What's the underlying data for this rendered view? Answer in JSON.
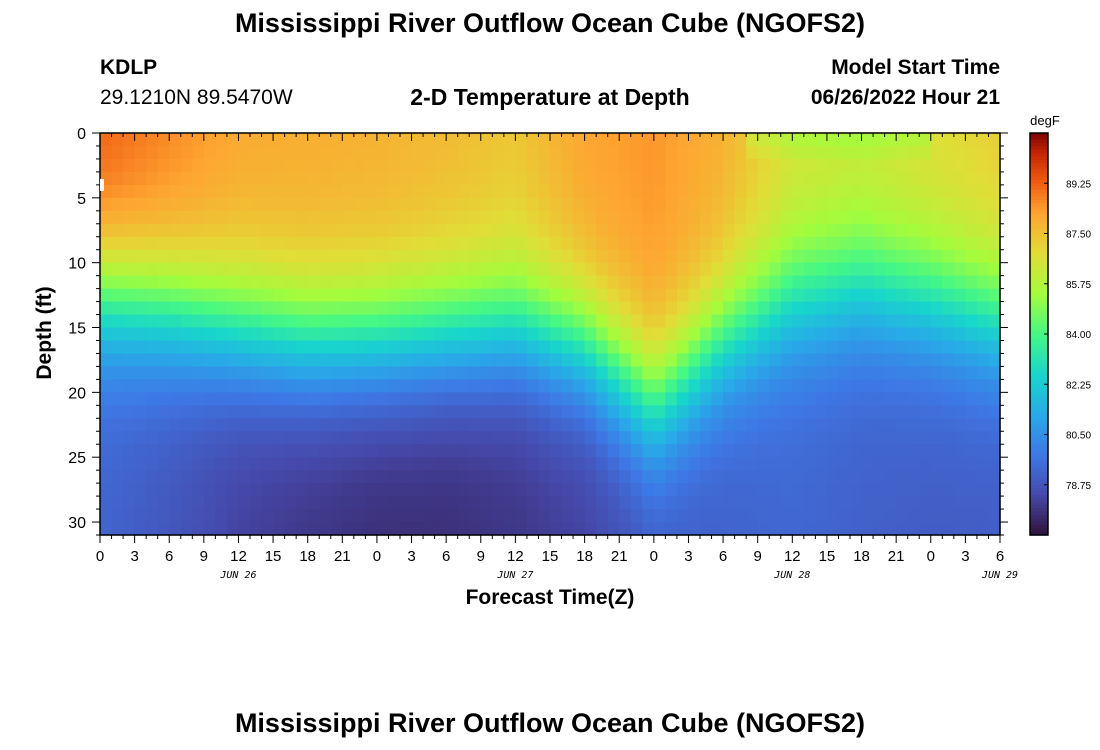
{
  "header": {
    "title": "Mississippi River Outflow Ocean Cube (NGOFS2)",
    "station_id": "KDLP",
    "station_coords": "29.1210N  89.5470W",
    "subtitle": "2-D Temperature at Depth",
    "model_label": "Model Start Time",
    "model_time": "06/26/2022 Hour 21"
  },
  "footer": {
    "title": "Mississippi River Outflow Ocean Cube (NGOFS2)"
  },
  "chart_data": {
    "type": "heatmap",
    "title": "2-D Temperature at Depth",
    "xlabel": "Forecast Time(Z)",
    "ylabel": "Depth (ft)",
    "colorbar_label": "degF",
    "colormap": "turbo",
    "x_ticks": [
      "0",
      "3",
      "6",
      "9",
      "12",
      "15",
      "18",
      "21",
      "0",
      "3",
      "6",
      "9",
      "12",
      "15",
      "18",
      "21",
      "0",
      "3",
      "6",
      "9",
      "12",
      "15",
      "18",
      "21",
      "0",
      "3",
      "6"
    ],
    "date_labels": [
      {
        "label": "JUN 26",
        "at_hour": 12
      },
      {
        "label": "JUN 27",
        "at_hour": 36
      },
      {
        "label": "JUN 28",
        "at_hour": 60
      },
      {
        "label": "JUN 29",
        "at_hour": 78
      }
    ],
    "x_range_hours": [
      0,
      78
    ],
    "y_ticks": [
      0,
      5,
      10,
      15,
      20,
      25,
      30
    ],
    "y_range": [
      0,
      31
    ],
    "colorbar_ticks": [
      89.25,
      87.5,
      85.75,
      84.0,
      82.25,
      80.5,
      78.75
    ],
    "colorbar_range": [
      77.0,
      91.0
    ],
    "thermocline_depth_ft": {
      "hours": [
        0,
        6,
        12,
        18,
        24,
        30,
        36,
        42,
        46,
        48,
        50,
        54,
        60,
        66,
        72,
        78
      ],
      "values": [
        12.5,
        13.5,
        15.0,
        16.0,
        16.0,
        15.5,
        15.0,
        16.5,
        19.5,
        21.0,
        19.5,
        16.0,
        13.0,
        12.0,
        13.0,
        14.5
      ]
    },
    "surface_temp_f": {
      "hours": [
        0,
        6,
        12,
        18,
        24,
        30,
        36,
        42,
        48,
        54,
        60,
        66,
        72,
        78
      ],
      "values": [
        89.3,
        88.7,
        88.1,
        88.0,
        87.9,
        87.7,
        87.4,
        88.2,
        88.4,
        87.9,
        86.6,
        86.4,
        86.8,
        87.2
      ]
    },
    "bottom_temp_f": {
      "hours": [
        0,
        6,
        12,
        18,
        24,
        30,
        36,
        42,
        48,
        54,
        60,
        66,
        72,
        78
      ],
      "values": [
        79.2,
        78.8,
        78.2,
        77.9,
        77.7,
        77.7,
        77.9,
        78.2,
        78.9,
        79.1,
        79.3,
        79.1,
        79.0,
        79.0
      ]
    }
  }
}
